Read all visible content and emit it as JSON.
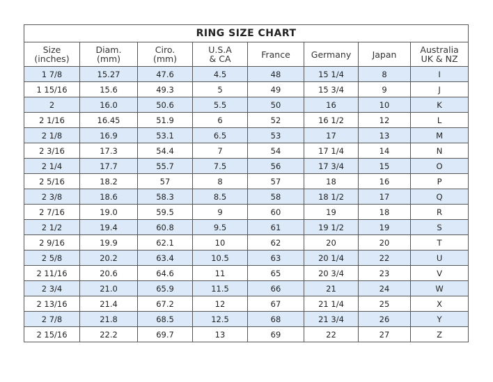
{
  "title": "RING SIZE CHART",
  "headers": [
    [
      "Size",
      "(inches)"
    ],
    [
      "Diam.",
      "(mm)"
    ],
    [
      "Ciro.",
      "(mm)"
    ],
    [
      "U.S.A",
      "& CA"
    ],
    [
      "France",
      ""
    ],
    [
      "Germany",
      ""
    ],
    [
      "Japan",
      ""
    ],
    [
      "Australia",
      "UK & NZ"
    ]
  ],
  "row_highlight_color": "#dbe9f8",
  "rows": [
    [
      "1 7/8",
      "15.27",
      "47.6",
      "4.5",
      "48",
      "15 1/4",
      "8",
      "I"
    ],
    [
      "1 15/16",
      "15.6",
      "49.3",
      "5",
      "49",
      "15 3/4",
      "9",
      "J"
    ],
    [
      "2",
      "16.0",
      "50.6",
      "5.5",
      "50",
      "16",
      "10",
      "K"
    ],
    [
      "2 1/16",
      "16.45",
      "51.9",
      "6",
      "52",
      "16 1/2",
      "12",
      "L"
    ],
    [
      "2 1/8",
      "16.9",
      "53.1",
      "6.5",
      "53",
      "17",
      "13",
      "M"
    ],
    [
      "2 3/16",
      "17.3",
      "54.4",
      "7",
      "54",
      "17 1/4",
      "14",
      "N"
    ],
    [
      "2 1/4",
      "17.7",
      "55.7",
      "7.5",
      "56",
      "17 3/4",
      "15",
      "O"
    ],
    [
      "2 5/16",
      "18.2",
      "57",
      "8",
      "57",
      "18",
      "16",
      "P"
    ],
    [
      "2 3/8",
      "18.6",
      "58.3",
      "8.5",
      "58",
      "18 1/2",
      "17",
      "Q"
    ],
    [
      "2 7/16",
      "19.0",
      "59.5",
      "9",
      "60",
      "19",
      "18",
      "R"
    ],
    [
      "2 1/2",
      "19.4",
      "60.8",
      "9.5",
      "61",
      "19 1/2",
      "19",
      "S"
    ],
    [
      "2 9/16",
      "19.9",
      "62.1",
      "10",
      "62",
      "20",
      "20",
      "T"
    ],
    [
      "2 5/8",
      "20.2",
      "63.4",
      "10.5",
      "63",
      "20 1/4",
      "22",
      "U"
    ],
    [
      "2 11/16",
      "20.6",
      "64.6",
      "11",
      "65",
      "20 3/4",
      "23",
      "V"
    ],
    [
      "2 3/4",
      "21.0",
      "65.9",
      "11.5",
      "66",
      "21",
      "24",
      "W"
    ],
    [
      "2 13/16",
      "21.4",
      "67.2",
      "12",
      "67",
      "21 1/4",
      "25",
      "X"
    ],
    [
      "2 7/8",
      "21.8",
      "68.5",
      "12.5",
      "68",
      "21 3/4",
      "26",
      "Y"
    ],
    [
      "2 15/16",
      "22.2",
      "69.7",
      "13",
      "69",
      "22",
      "27",
      "Z"
    ]
  ]
}
